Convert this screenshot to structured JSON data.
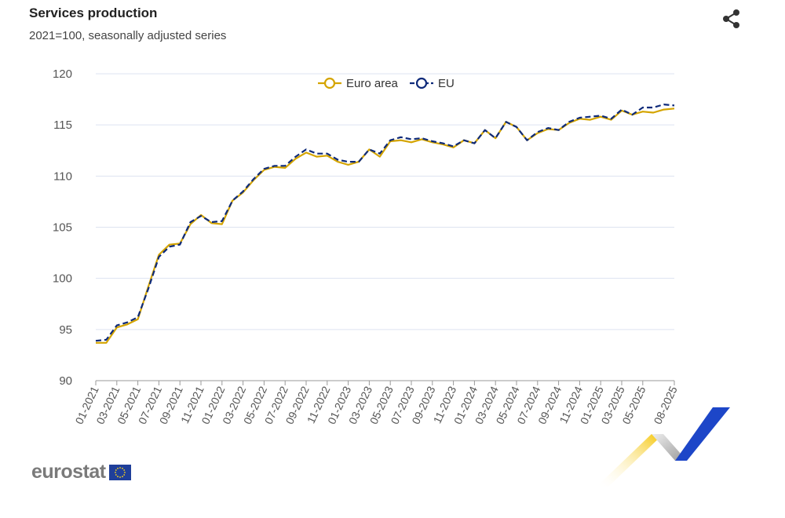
{
  "header": {
    "title": "Services production",
    "subtitle": "2021=100, seasonally adjusted series",
    "share_icon": "share-icon"
  },
  "logo": {
    "text": "eurostat"
  },
  "chart_data": {
    "type": "line",
    "title": "Services production",
    "subtitle": "2021=100, seasonally adjusted series",
    "xlabel": "",
    "ylabel": "",
    "ylim": [
      90,
      120
    ],
    "yticks": [
      90,
      95,
      100,
      105,
      110,
      115,
      120
    ],
    "grid": true,
    "legend": "top-center",
    "x": [
      "01-2021",
      "02-2021",
      "03-2021",
      "04-2021",
      "05-2021",
      "06-2021",
      "07-2021",
      "08-2021",
      "09-2021",
      "10-2021",
      "11-2021",
      "12-2021",
      "01-2022",
      "02-2022",
      "03-2022",
      "04-2022",
      "05-2022",
      "06-2022",
      "07-2022",
      "08-2022",
      "09-2022",
      "10-2022",
      "11-2022",
      "12-2022",
      "01-2023",
      "02-2023",
      "03-2023",
      "04-2023",
      "05-2023",
      "06-2023",
      "07-2023",
      "08-2023",
      "09-2023",
      "10-2023",
      "11-2023",
      "12-2023",
      "01-2024",
      "02-2024",
      "03-2024",
      "04-2024",
      "05-2024",
      "06-2024",
      "07-2024",
      "08-2024",
      "09-2024",
      "10-2024",
      "11-2024",
      "12-2024",
      "01-2025",
      "02-2025",
      "03-2025",
      "04-2025",
      "05-2025",
      "06-2025",
      "07-2025",
      "08-2025"
    ],
    "xticks": [
      "01-2021",
      "03-2021",
      "05-2021",
      "07-2021",
      "09-2021",
      "11-2021",
      "01-2022",
      "03-2022",
      "05-2022",
      "07-2022",
      "09-2022",
      "11-2022",
      "01-2023",
      "03-2023",
      "05-2023",
      "07-2023",
      "09-2023",
      "11-2023",
      "01-2024",
      "03-2024",
      "05-2024",
      "07-2024",
      "09-2024",
      "11-2024",
      "01-2025",
      "03-2025",
      "05-2025",
      "08-2025"
    ],
    "series": [
      {
        "name": "Euro area",
        "color": "#d4a400",
        "dashed": false,
        "values": [
          93.7,
          93.7,
          95.2,
          95.5,
          96.0,
          99.2,
          102.3,
          103.3,
          103.4,
          105.3,
          106.2,
          105.4,
          105.3,
          107.6,
          108.4,
          109.6,
          110.6,
          110.9,
          110.8,
          111.7,
          112.3,
          111.9,
          112.0,
          111.4,
          111.1,
          111.4,
          112.6,
          111.9,
          113.4,
          113.5,
          113.3,
          113.6,
          113.3,
          113.1,
          112.8,
          113.5,
          113.2,
          114.5,
          113.7,
          115.3,
          114.8,
          113.5,
          114.2,
          114.6,
          114.5,
          115.2,
          115.6,
          115.5,
          115.8,
          115.5,
          116.4,
          116.0,
          116.3,
          116.2,
          116.5,
          116.6
        ]
      },
      {
        "name": "EU",
        "color": "#0e2a7a",
        "dashed": true,
        "values": [
          93.9,
          94.0,
          95.4,
          95.7,
          96.2,
          99.0,
          102.1,
          103.1,
          103.3,
          105.5,
          106.1,
          105.5,
          105.6,
          107.6,
          108.5,
          109.7,
          110.7,
          111.0,
          111.0,
          111.9,
          112.6,
          112.2,
          112.2,
          111.6,
          111.4,
          111.4,
          112.6,
          112.2,
          113.5,
          113.8,
          113.6,
          113.7,
          113.4,
          113.2,
          112.9,
          113.5,
          113.2,
          114.5,
          113.7,
          115.3,
          114.8,
          113.5,
          114.3,
          114.7,
          114.5,
          115.3,
          115.7,
          115.8,
          115.9,
          115.6,
          116.5,
          116.0,
          116.7,
          116.7,
          117.0,
          116.9
        ]
      }
    ]
  }
}
